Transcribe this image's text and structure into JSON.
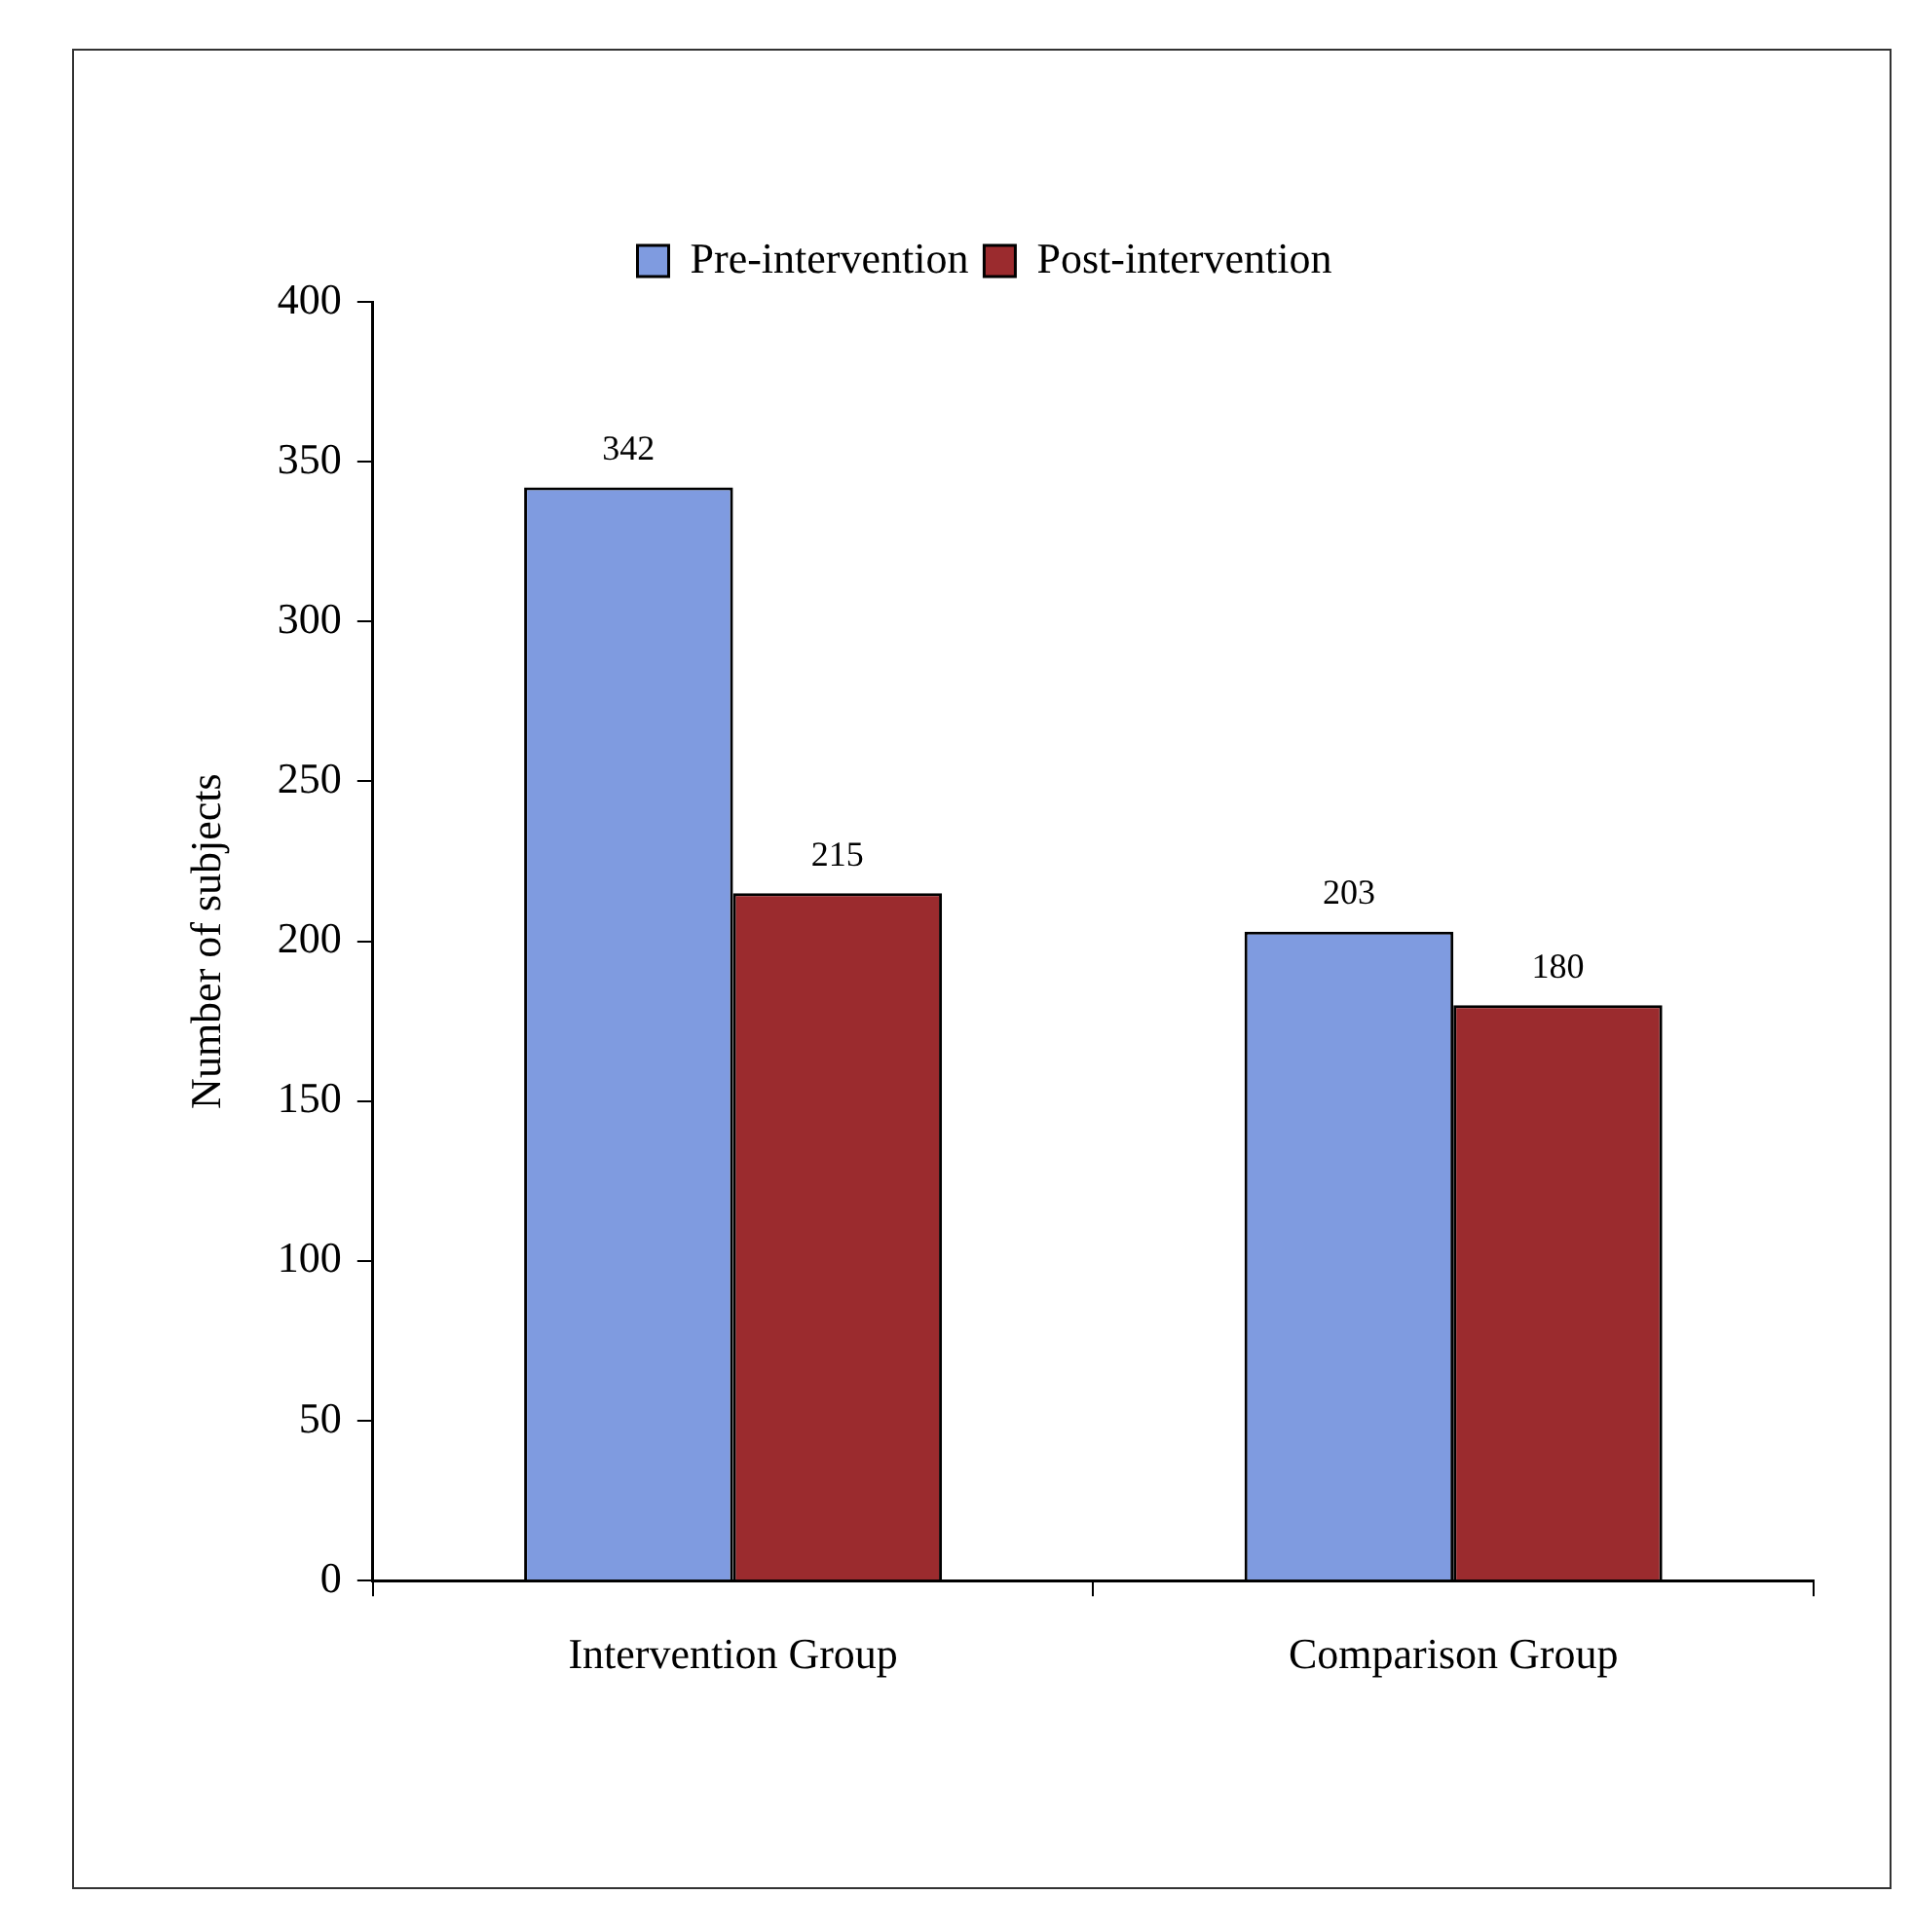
{
  "chart_data": {
    "type": "bar",
    "ylabel": "Number of subjects",
    "categories": [
      "Intervention Group",
      "Comparison Group"
    ],
    "series": [
      {
        "name": "Pre-intervention",
        "color": "#7f9be0",
        "values": [
          342,
          203
        ]
      },
      {
        "name": "Post-intervention",
        "color": "#9b2b2e",
        "values": [
          215,
          180
        ]
      }
    ],
    "ylim": [
      0,
      400
    ],
    "yticks": [
      0,
      50,
      100,
      150,
      200,
      250,
      300,
      350,
      400
    ],
    "legend": "top",
    "data_labels": true
  }
}
